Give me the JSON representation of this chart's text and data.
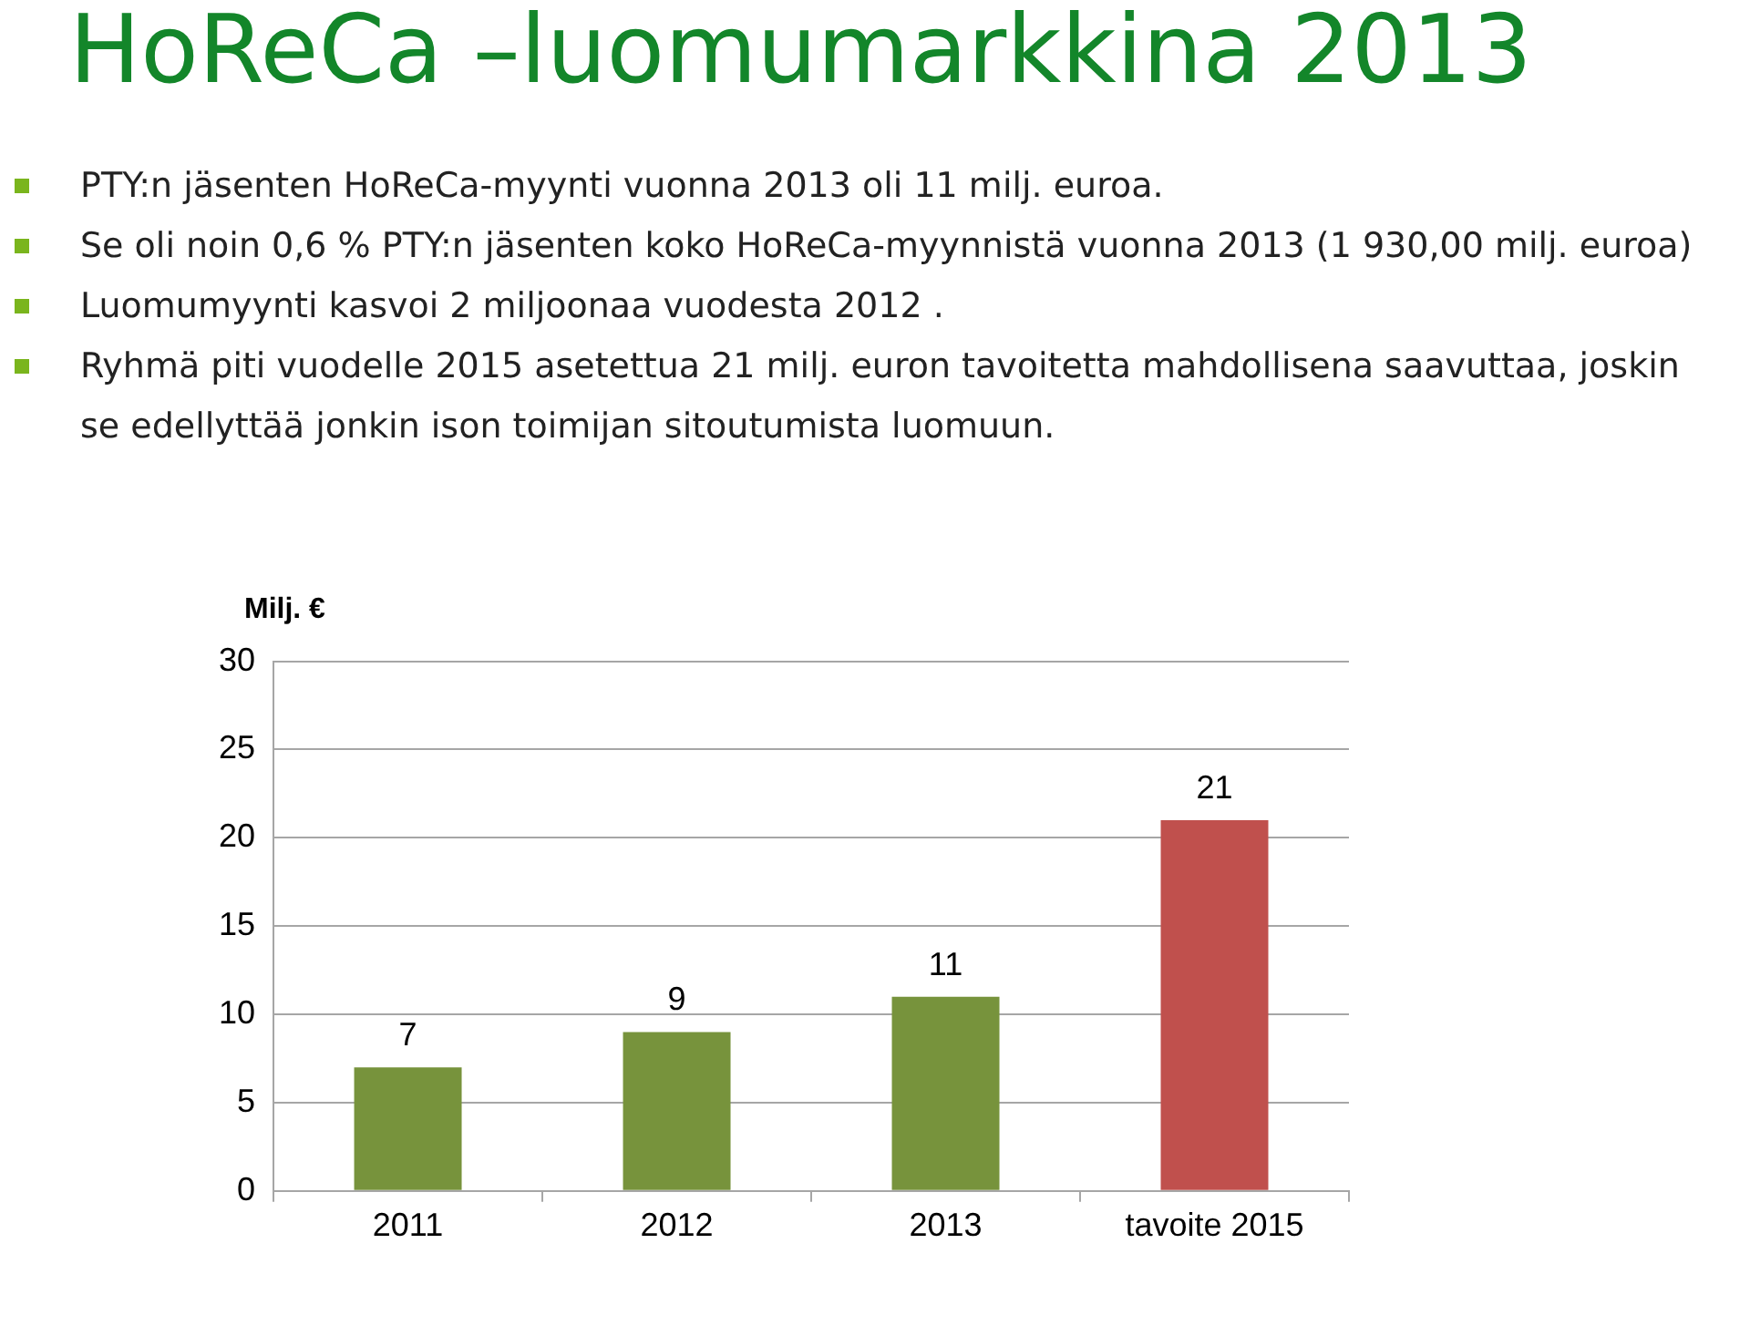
{
  "chart_data": {
    "type": "bar",
    "title": "HoReCa –luomumarkkina 2013",
    "annotations": [
      "PTY:n jäsenten HoReCa-myynti vuonna 2013 oli 11 milj. euroa.",
      "Se oli noin 0,6 % PTY:n jäsenten koko HoReCa-myynnistä vuonna 2013 (1 930,00 milj. euroa)",
      "Luomumyynti kasvoi 2 miljoonaa vuodesta 2012 .",
      "Ryhmä piti vuodelle 2015 asetettua 21 milj. euron tavoitetta mahdollisena saavuttaa, joskin se edellyttää jonkin ison toimijan sitoutumista luomuun."
    ],
    "ylabel": "Milj. €",
    "categories": [
      "2011",
      "2012",
      "2013",
      "tavoite 2015"
    ],
    "values": [
      7,
      9,
      11,
      21
    ],
    "colors": [
      "#77933c",
      "#77933c",
      "#77933c",
      "#c0504d"
    ],
    "ylim": [
      0,
      30
    ],
    "yticks": [
      0,
      5,
      10,
      15,
      20,
      25,
      30
    ],
    "grid": "y",
    "data_labels": true
  }
}
